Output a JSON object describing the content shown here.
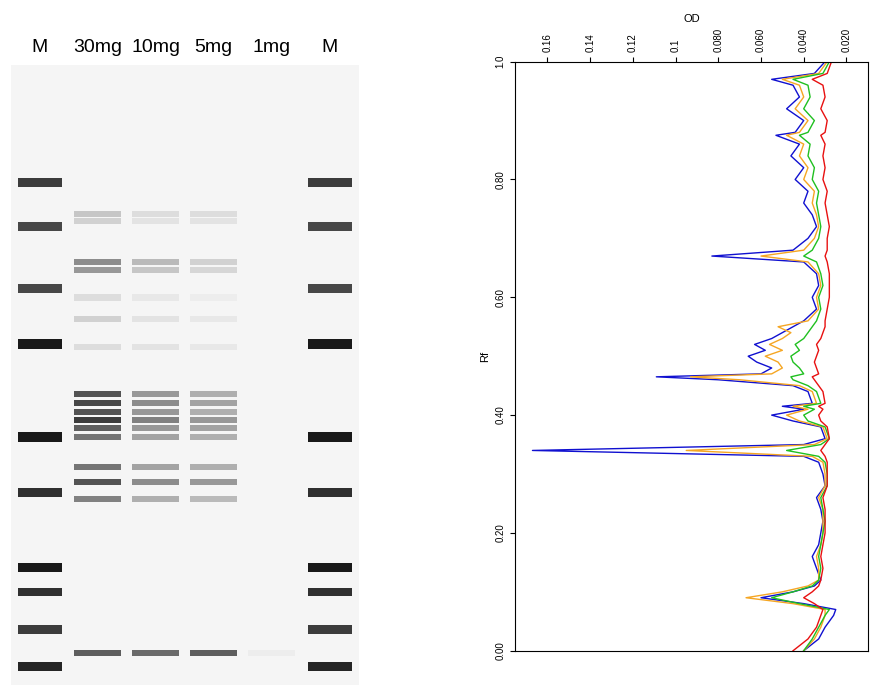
{
  "gel": {
    "lanes": [
      "M",
      "30mg",
      "10mg",
      "5mg",
      "1mg",
      "M"
    ],
    "marker_bands": [
      {
        "position": 0.19,
        "intensity": 0.85
      },
      {
        "position": 0.26,
        "intensity": 0.8
      },
      {
        "position": 0.36,
        "intensity": 0.8
      },
      {
        "position": 0.45,
        "intensity": 1.0
      },
      {
        "position": 0.6,
        "intensity": 1.0
      },
      {
        "position": 0.69,
        "intensity": 0.9
      },
      {
        "position": 0.81,
        "intensity": 1.0
      },
      {
        "position": 0.85,
        "intensity": 0.9
      },
      {
        "position": 0.91,
        "intensity": 0.85
      },
      {
        "position": 0.97,
        "intensity": 0.95
      }
    ],
    "sample_bands": [
      {
        "position": 0.24,
        "intensity": [
          0.25,
          0.15,
          0.15,
          0.0
        ]
      },
      {
        "position": 0.252,
        "intensity": [
          0.2,
          0.12,
          0.12,
          0.0
        ]
      },
      {
        "position": 0.318,
        "intensity": [
          0.5,
          0.3,
          0.2,
          0.0
        ]
      },
      {
        "position": 0.33,
        "intensity": [
          0.45,
          0.25,
          0.18,
          0.0
        ]
      },
      {
        "position": 0.375,
        "intensity": [
          0.15,
          0.1,
          0.08,
          0.0
        ]
      },
      {
        "position": 0.41,
        "intensity": [
          0.2,
          0.12,
          0.1,
          0.0
        ]
      },
      {
        "position": 0.455,
        "intensity": [
          0.15,
          0.12,
          0.1,
          0.0
        ]
      },
      {
        "position": 0.53,
        "intensity": [
          0.75,
          0.45,
          0.35,
          0.0
        ]
      },
      {
        "position": 0.545,
        "intensity": [
          0.8,
          0.5,
          0.4,
          0.0
        ]
      },
      {
        "position": 0.56,
        "intensity": [
          0.75,
          0.45,
          0.35,
          0.0
        ]
      },
      {
        "position": 0.573,
        "intensity": [
          0.85,
          0.55,
          0.45,
          0.0
        ]
      },
      {
        "position": 0.585,
        "intensity": [
          0.7,
          0.45,
          0.4,
          0.0
        ]
      },
      {
        "position": 0.6,
        "intensity": [
          0.6,
          0.4,
          0.35,
          0.0
        ]
      },
      {
        "position": 0.648,
        "intensity": [
          0.6,
          0.4,
          0.35,
          0.0
        ]
      },
      {
        "position": 0.672,
        "intensity": [
          0.75,
          0.5,
          0.45,
          0.0
        ]
      },
      {
        "position": 0.7,
        "intensity": [
          0.55,
          0.35,
          0.3,
          0.0
        ]
      },
      {
        "position": 0.948,
        "intensity": [
          0.7,
          0.65,
          0.7,
          0.08
        ]
      }
    ]
  },
  "chart_data": {
    "type": "line",
    "xlabel": "OD",
    "ylabel": "Rf",
    "xlim": [
      0.175,
      0.01
    ],
    "xticks": [
      0.16,
      0.14,
      0.12,
      0.1,
      {
        "value": 0.08,
        "label": "0.080"
      },
      {
        "value": 0.06,
        "label": "0.060"
      },
      {
        "value": 0.04,
        "label": "0.040"
      },
      {
        "value": 0.02,
        "label": "0.020"
      }
    ],
    "ylim": [
      0.0,
      1.0
    ],
    "yticks": [
      {
        "value": 0.0,
        "label": "0.00"
      },
      {
        "value": 0.2,
        "label": "0.20"
      },
      {
        "value": 0.4,
        "label": "0.40"
      },
      {
        "value": 0.6,
        "label": "0.60"
      },
      {
        "value": 0.8,
        "label": "0.80"
      },
      {
        "value": 1.0,
        "label": "1.0"
      }
    ],
    "x": [
      0.0,
      0.02,
      0.04,
      0.06,
      0.07,
      0.08,
      0.09,
      0.1,
      0.11,
      0.12,
      0.14,
      0.16,
      0.18,
      0.2,
      0.22,
      0.24,
      0.26,
      0.28,
      0.3,
      0.32,
      0.33,
      0.34,
      0.35,
      0.36,
      0.38,
      0.39,
      0.4,
      0.41,
      0.415,
      0.42,
      0.44,
      0.45,
      0.46,
      0.465,
      0.47,
      0.48,
      0.49,
      0.5,
      0.51,
      0.52,
      0.53,
      0.54,
      0.55,
      0.56,
      0.58,
      0.6,
      0.62,
      0.64,
      0.66,
      0.67,
      0.68,
      0.7,
      0.72,
      0.74,
      0.76,
      0.78,
      0.8,
      0.82,
      0.84,
      0.86,
      0.875,
      0.88,
      0.9,
      0.92,
      0.94,
      0.96,
      0.97,
      0.98,
      1.0
    ],
    "series": [
      {
        "color": "#1010d0",
        "values": [
          0.04,
          0.033,
          0.03,
          0.026,
          0.025,
          0.04,
          0.06,
          0.045,
          0.035,
          0.032,
          0.034,
          0.036,
          0.033,
          0.032,
          0.031,
          0.032,
          0.034,
          0.03,
          0.031,
          0.033,
          0.04,
          0.167,
          0.04,
          0.03,
          0.032,
          0.045,
          0.055,
          0.04,
          0.05,
          0.036,
          0.038,
          0.045,
          0.08,
          0.109,
          0.06,
          0.055,
          0.062,
          0.066,
          0.058,
          0.063,
          0.055,
          0.05,
          0.045,
          0.04,
          0.034,
          0.036,
          0.033,
          0.034,
          0.04,
          0.083,
          0.045,
          0.038,
          0.034,
          0.036,
          0.04,
          0.038,
          0.044,
          0.04,
          0.046,
          0.042,
          0.053,
          0.044,
          0.04,
          0.048,
          0.042,
          0.045,
          0.055,
          0.035,
          0.03
        ]
      },
      {
        "color": "#f5a623",
        "values": [
          0.04,
          0.035,
          0.032,
          0.03,
          0.03,
          0.045,
          0.067,
          0.05,
          0.038,
          0.033,
          0.033,
          0.034,
          0.032,
          0.031,
          0.031,
          0.031,
          0.033,
          0.03,
          0.03,
          0.031,
          0.036,
          0.095,
          0.035,
          0.029,
          0.031,
          0.042,
          0.048,
          0.038,
          0.045,
          0.034,
          0.036,
          0.042,
          0.07,
          0.093,
          0.055,
          0.05,
          0.052,
          0.058,
          0.05,
          0.056,
          0.05,
          0.046,
          0.052,
          0.038,
          0.033,
          0.034,
          0.032,
          0.033,
          0.038,
          0.06,
          0.04,
          0.035,
          0.033,
          0.034,
          0.036,
          0.035,
          0.04,
          0.038,
          0.042,
          0.04,
          0.048,
          0.042,
          0.038,
          0.044,
          0.04,
          0.042,
          0.05,
          0.033,
          0.029
        ]
      },
      {
        "color": "#20c020",
        "values": [
          0.04,
          0.036,
          0.033,
          0.03,
          0.028,
          0.042,
          0.055,
          0.045,
          0.036,
          0.033,
          0.032,
          0.033,
          0.032,
          0.031,
          0.03,
          0.031,
          0.032,
          0.029,
          0.029,
          0.03,
          0.033,
          0.048,
          0.032,
          0.028,
          0.03,
          0.038,
          0.04,
          0.035,
          0.04,
          0.032,
          0.034,
          0.038,
          0.045,
          0.046,
          0.04,
          0.042,
          0.045,
          0.046,
          0.042,
          0.044,
          0.04,
          0.038,
          0.036,
          0.034,
          0.032,
          0.033,
          0.031,
          0.032,
          0.034,
          0.04,
          0.036,
          0.033,
          0.032,
          0.033,
          0.034,
          0.033,
          0.036,
          0.035,
          0.038,
          0.037,
          0.042,
          0.038,
          0.035,
          0.04,
          0.037,
          0.038,
          0.045,
          0.031,
          0.028
        ]
      },
      {
        "color": "#e81010",
        "values": [
          0.045,
          0.038,
          0.034,
          0.032,
          0.031,
          0.035,
          0.04,
          0.036,
          0.033,
          0.032,
          0.031,
          0.032,
          0.031,
          0.03,
          0.03,
          0.03,
          0.031,
          0.029,
          0.029,
          0.029,
          0.03,
          0.032,
          0.03,
          0.028,
          0.029,
          0.032,
          0.033,
          0.031,
          0.033,
          0.03,
          0.031,
          0.033,
          0.035,
          0.036,
          0.033,
          0.034,
          0.035,
          0.034,
          0.033,
          0.034,
          0.032,
          0.031,
          0.03,
          0.03,
          0.029,
          0.028,
          0.028,
          0.028,
          0.029,
          0.03,
          0.029,
          0.029,
          0.028,
          0.029,
          0.03,
          0.029,
          0.031,
          0.03,
          0.031,
          0.03,
          0.032,
          0.03,
          0.029,
          0.032,
          0.03,
          0.031,
          0.036,
          0.029,
          0.027
        ]
      }
    ]
  }
}
